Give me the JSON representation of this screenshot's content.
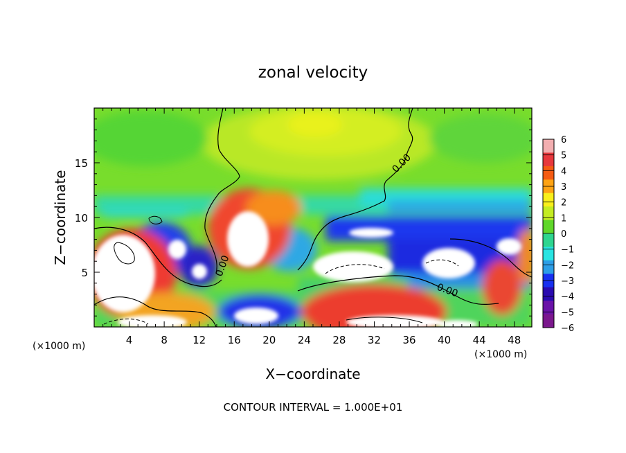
{
  "chart_data": {
    "type": "heatmap",
    "title": "zonal velocity",
    "xlabel": "X−coordinate",
    "ylabel": "Z−coordinate",
    "x_unit_label": "(×1000 m)",
    "z_unit_label": "(×1000 m)",
    "footer": "CONTOUR INTERVAL = 1.000E+01",
    "xlim": [
      0,
      50
    ],
    "ylim": [
      0,
      20
    ],
    "x_ticks": [
      4,
      8,
      12,
      16,
      20,
      24,
      28,
      32,
      36,
      40,
      44,
      48
    ],
    "y_ticks": [
      5,
      10,
      15
    ],
    "colorbar": {
      "levels": [
        6,
        5,
        4,
        3,
        2,
        1,
        0,
        -1,
        -2,
        -3,
        -4,
        -5,
        -6
      ],
      "colors": [
        "#f2aeb0",
        "#e7383d",
        "#f55b13",
        "#fea314",
        "#f9ef1b",
        "#c4ec22",
        "#60d72a",
        "#2ed58f",
        "#29e4e2",
        "#2d9ee7",
        "#1830f0",
        "#2a0bb0",
        "#6a13a8",
        "#7b188d"
      ],
      "range": [
        -6,
        6
      ]
    },
    "contour_labels": [
      "0.00",
      "0.00",
      "0.00"
    ]
  }
}
